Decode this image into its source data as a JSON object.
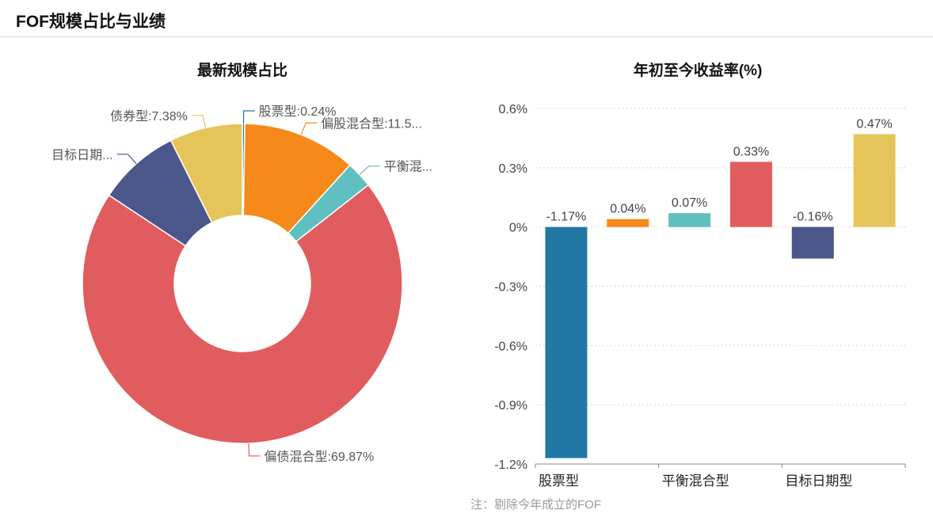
{
  "header": {
    "title": "FOF规模占比与业绩"
  },
  "pie_panel": {
    "title": "最新规模占比"
  },
  "bar_panel": {
    "title": "年初至今收益率(%)"
  },
  "footnote": "注：剔除今年成立的FOF",
  "chart_data": [
    {
      "type": "pie",
      "title": "最新规模占比",
      "donut": true,
      "slices": [
        {
          "name": "股票型",
          "value": 0.24,
          "color": "#2278a5",
          "label": "股票型:0.24%"
        },
        {
          "name": "偏股混合型",
          "value": 11.5,
          "color": "#f5891a",
          "label": "偏股混合型:11.5..."
        },
        {
          "name": "平衡混合型",
          "value": 2.7,
          "color": "#5fbfc1",
          "label": "平衡混..."
        },
        {
          "name": "偏债混合型",
          "value": 69.87,
          "color": "#e05c5e",
          "label": "偏债混合型:69.87%"
        },
        {
          "name": "目标日期型",
          "value": 8.31,
          "color": "#4b568a",
          "label": "目标日期..."
        },
        {
          "name": "债券型",
          "value": 7.38,
          "color": "#e5c55a",
          "label": "债券型:7.38%"
        }
      ]
    },
    {
      "type": "bar",
      "title": "年初至今收益率(%)",
      "categories": [
        "股票型",
        "偏股混合型",
        "平衡混合型",
        "偏债混合型",
        "目标日期型",
        "债券型"
      ],
      "values": [
        -1.17,
        0.04,
        0.07,
        0.33,
        -0.16,
        0.47
      ],
      "value_labels": [
        "-1.17%",
        "0.04%",
        "0.07%",
        "0.33%",
        "-0.16%",
        "0.47%"
      ],
      "colors": [
        "#2278a5",
        "#f5891a",
        "#5fbfc1",
        "#e05c5e",
        "#4b568a",
        "#e5c55a"
      ],
      "visible_x_labels": [
        "股票型",
        "平衡混合型",
        "目标日期型"
      ],
      "y_ticks": [
        0.6,
        0.3,
        0,
        -0.3,
        -0.6,
        -0.9,
        -1.2
      ],
      "y_tick_labels": [
        "0.6%",
        "0.3%",
        "0%",
        "-0.3%",
        "-0.6%",
        "-0.9%",
        "-1.2%"
      ],
      "ylim": [
        -1.2,
        0.6
      ],
      "grid": true
    }
  ]
}
